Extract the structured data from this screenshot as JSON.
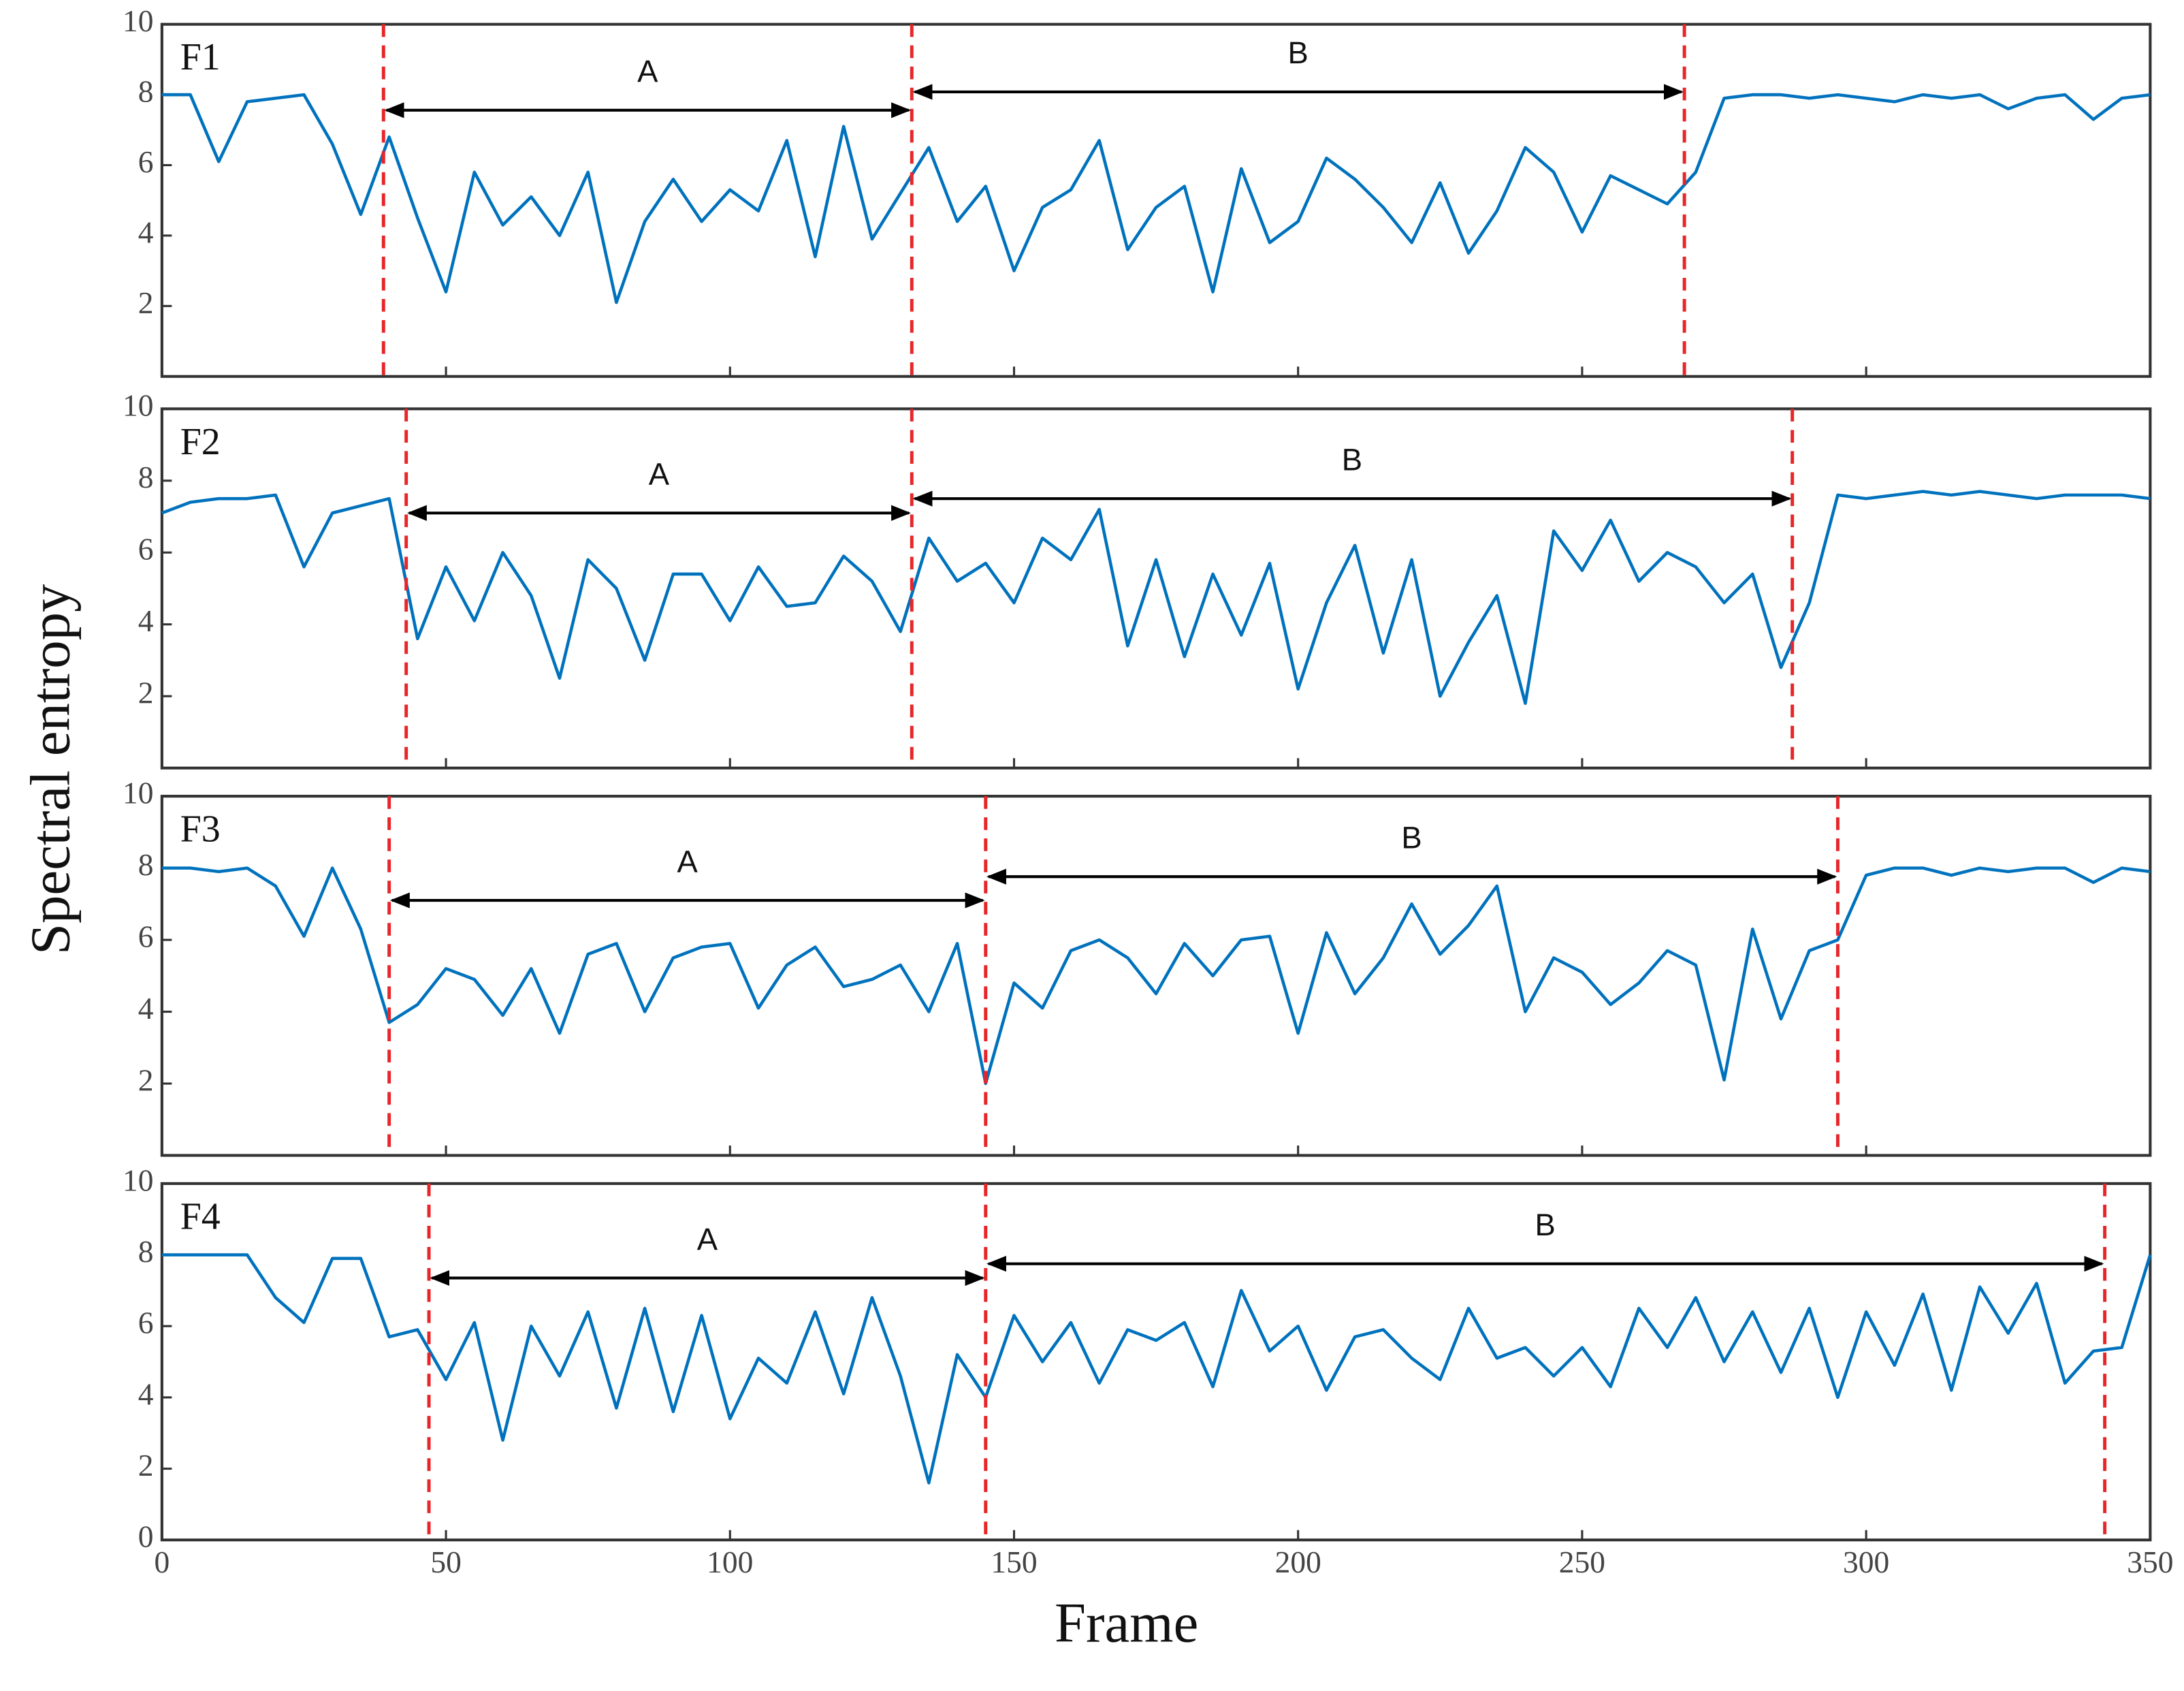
{
  "xlabel": "Frame",
  "ylabel": "Spectral entropy",
  "chart_data": [
    {
      "type": "line",
      "label": "F1",
      "color": "#0072bd",
      "divider_color": "#e8262a",
      "xlim": [
        0,
        350
      ],
      "ylim": [
        0,
        10
      ],
      "yticks": [
        2,
        4,
        6,
        8,
        10
      ],
      "x": [
        0,
        5,
        10,
        15,
        20,
        25,
        30,
        35,
        40,
        45,
        50,
        55,
        60,
        65,
        70,
        75,
        80,
        85,
        90,
        95,
        100,
        105,
        110,
        115,
        120,
        125,
        130,
        135,
        140,
        145,
        150,
        155,
        160,
        165,
        170,
        175,
        180,
        185,
        190,
        195,
        200,
        205,
        210,
        215,
        220,
        225,
        230,
        235,
        240,
        245,
        250,
        255,
        260,
        265,
        270,
        275,
        280,
        285,
        290,
        295,
        300,
        305,
        310,
        315,
        320,
        325,
        330,
        335,
        340,
        345,
        350
      ],
      "values": [
        8.0,
        8.0,
        6.1,
        7.8,
        7.9,
        8.0,
        6.6,
        4.6,
        6.8,
        4.5,
        2.4,
        5.8,
        4.3,
        5.1,
        4.0,
        5.8,
        2.1,
        4.4,
        5.6,
        4.4,
        5.3,
        4.7,
        6.7,
        3.4,
        7.1,
        3.9,
        5.2,
        6.5,
        4.4,
        5.4,
        3.0,
        4.8,
        5.3,
        6.7,
        3.6,
        4.8,
        5.4,
        2.4,
        5.9,
        3.8,
        4.4,
        6.2,
        5.6,
        4.8,
        3.8,
        5.5,
        3.5,
        4.7,
        6.5,
        5.8,
        4.1,
        5.7,
        5.3,
        4.9,
        5.8,
        7.9,
        8.0,
        8.0,
        7.9,
        8.0,
        7.9,
        7.8,
        8.0,
        7.9,
        8.0,
        7.6,
        7.9,
        8.0,
        7.3,
        7.9,
        8.0
      ],
      "dividers": [
        39,
        132,
        268
      ],
      "segments": [
        {
          "label": "A",
          "y": 7.56
        },
        {
          "label": "B",
          "y": 8.08
        }
      ]
    },
    {
      "type": "line",
      "label": "F2",
      "color": "#0072bd",
      "divider_color": "#e8262a",
      "xlim": [
        0,
        350
      ],
      "ylim": [
        0,
        10
      ],
      "yticks": [
        2,
        4,
        6,
        8,
        10
      ],
      "x": [
        0,
        5,
        10,
        15,
        20,
        25,
        30,
        35,
        40,
        45,
        50,
        55,
        60,
        65,
        70,
        75,
        80,
        85,
        90,
        95,
        100,
        105,
        110,
        115,
        120,
        125,
        130,
        135,
        140,
        145,
        150,
        155,
        160,
        165,
        170,
        175,
        180,
        185,
        190,
        195,
        200,
        205,
        210,
        215,
        220,
        225,
        230,
        235,
        240,
        245,
        250,
        255,
        260,
        265,
        270,
        275,
        280,
        285,
        290,
        295,
        300,
        305,
        310,
        315,
        320,
        325,
        330,
        335,
        340,
        345,
        350
      ],
      "values": [
        7.1,
        7.4,
        7.5,
        7.5,
        7.6,
        5.6,
        7.1,
        7.3,
        7.5,
        3.6,
        5.6,
        4.1,
        6.0,
        4.8,
        2.5,
        5.8,
        5.0,
        3.0,
        5.4,
        5.4,
        4.1,
        5.6,
        4.5,
        4.6,
        5.9,
        5.2,
        3.8,
        6.4,
        5.2,
        5.7,
        4.6,
        6.4,
        5.8,
        7.2,
        3.4,
        5.8,
        3.1,
        5.4,
        3.7,
        5.7,
        2.2,
        4.6,
        6.2,
        3.2,
        5.8,
        2.0,
        3.5,
        4.8,
        1.8,
        6.6,
        5.5,
        6.9,
        5.2,
        6.0,
        5.6,
        4.6,
        5.4,
        2.8,
        4.6,
        7.6,
        7.5,
        7.6,
        7.7,
        7.6,
        7.7,
        7.6,
        7.5,
        7.6,
        7.6,
        7.6,
        7.5
      ],
      "dividers": [
        43,
        132,
        287
      ],
      "segments": [
        {
          "label": "A",
          "y": 7.1
        },
        {
          "label": "B",
          "y": 7.5
        }
      ]
    },
    {
      "type": "line",
      "label": "F3",
      "color": "#0072bd",
      "divider_color": "#e8262a",
      "xlim": [
        0,
        350
      ],
      "ylim": [
        0,
        10
      ],
      "yticks": [
        2,
        4,
        6,
        8,
        10
      ],
      "x": [
        0,
        5,
        10,
        15,
        20,
        25,
        30,
        35,
        40,
        45,
        50,
        55,
        60,
        65,
        70,
        75,
        80,
        85,
        90,
        95,
        100,
        105,
        110,
        115,
        120,
        125,
        130,
        135,
        140,
        145,
        150,
        155,
        160,
        165,
        170,
        175,
        180,
        185,
        190,
        195,
        200,
        205,
        210,
        215,
        220,
        225,
        230,
        235,
        240,
        245,
        250,
        255,
        260,
        265,
        270,
        275,
        280,
        285,
        290,
        295,
        300,
        305,
        310,
        315,
        320,
        325,
        330,
        335,
        340,
        345,
        350
      ],
      "values": [
        8.0,
        8.0,
        7.9,
        8.0,
        7.5,
        6.1,
        8.0,
        6.3,
        3.7,
        4.2,
        5.2,
        4.9,
        3.9,
        5.2,
        3.4,
        5.6,
        5.9,
        4.0,
        5.5,
        5.8,
        5.9,
        4.1,
        5.3,
        5.8,
        4.7,
        4.9,
        5.3,
        4.0,
        5.9,
        2.0,
        4.8,
        4.1,
        5.7,
        6.0,
        5.5,
        4.5,
        5.9,
        5.0,
        6.0,
        6.1,
        3.4,
        6.2,
        4.5,
        5.5,
        7.0,
        5.6,
        6.4,
        7.5,
        4.0,
        5.5,
        5.1,
        4.2,
        4.8,
        5.7,
        5.3,
        2.1,
        6.3,
        3.8,
        5.7,
        6.0,
        7.8,
        8.0,
        8.0,
        7.8,
        8.0,
        7.9,
        8.0,
        8.0,
        7.6,
        8.0,
        7.9
      ],
      "dividers": [
        40,
        145,
        295
      ],
      "segments": [
        {
          "label": "A",
          "y": 7.1
        },
        {
          "label": "B",
          "y": 7.76
        }
      ]
    },
    {
      "type": "line",
      "label": "F4",
      "color": "#0072bd",
      "divider_color": "#e8262a",
      "xlim": [
        0,
        350
      ],
      "ylim": [
        0,
        10
      ],
      "yticks": [
        0,
        2,
        4,
        6,
        8,
        10
      ],
      "xticks": [
        0,
        50,
        100,
        150,
        200,
        250,
        300,
        350
      ],
      "x": [
        0,
        5,
        10,
        15,
        20,
        25,
        30,
        35,
        40,
        45,
        50,
        55,
        60,
        65,
        70,
        75,
        80,
        85,
        90,
        95,
        100,
        105,
        110,
        115,
        120,
        125,
        130,
        135,
        140,
        145,
        150,
        155,
        160,
        165,
        170,
        175,
        180,
        185,
        190,
        195,
        200,
        205,
        210,
        215,
        220,
        225,
        230,
        235,
        240,
        245,
        250,
        255,
        260,
        265,
        270,
        275,
        280,
        285,
        290,
        295,
        300,
        305,
        310,
        315,
        320,
        325,
        330,
        335,
        340,
        345,
        350
      ],
      "values": [
        8.0,
        8.0,
        8.0,
        8.0,
        6.8,
        6.1,
        7.9,
        7.9,
        5.7,
        5.9,
        4.5,
        6.1,
        2.8,
        6.0,
        4.6,
        6.4,
        3.7,
        6.5,
        3.6,
        6.3,
        3.4,
        5.1,
        4.4,
        6.4,
        4.1,
        6.8,
        4.6,
        1.6,
        5.2,
        4.0,
        6.3,
        5.0,
        6.1,
        4.4,
        5.9,
        5.6,
        6.1,
        4.3,
        7.0,
        5.3,
        6.0,
        4.2,
        5.7,
        5.9,
        5.1,
        4.5,
        6.5,
        5.1,
        5.4,
        4.6,
        5.4,
        4.3,
        6.5,
        5.4,
        6.8,
        5.0,
        6.4,
        4.7,
        6.5,
        4.0,
        6.4,
        4.9,
        6.9,
        4.2,
        7.1,
        5.8,
        7.2,
        4.4,
        5.3,
        5.4,
        8.0
      ],
      "dividers": [
        47,
        145,
        342
      ],
      "segments": [
        {
          "label": "A",
          "y": 7.35
        },
        {
          "label": "B",
          "y": 7.75
        }
      ]
    }
  ]
}
